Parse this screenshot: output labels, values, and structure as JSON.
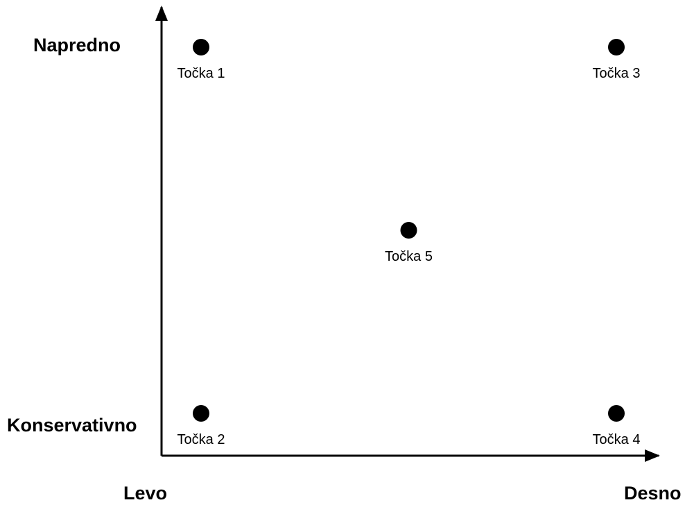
{
  "axis_labels": {
    "top": "Napredno",
    "bottom": "Konservativno",
    "left": "Levo",
    "right": "Desno"
  },
  "points": [
    {
      "label": "Točka 1",
      "x": 0.1,
      "y": 0.9
    },
    {
      "label": "Točka 2",
      "x": 0.1,
      "y": 0.1
    },
    {
      "label": "Točka 3",
      "x": 0.9,
      "y": 0.9
    },
    {
      "label": "Točka 4",
      "x": 0.9,
      "y": 0.1
    },
    {
      "label": "Točka 5",
      "x": 0.5,
      "y": 0.5
    }
  ],
  "colors": {
    "ink": "#000000",
    "background": "#ffffff"
  }
}
